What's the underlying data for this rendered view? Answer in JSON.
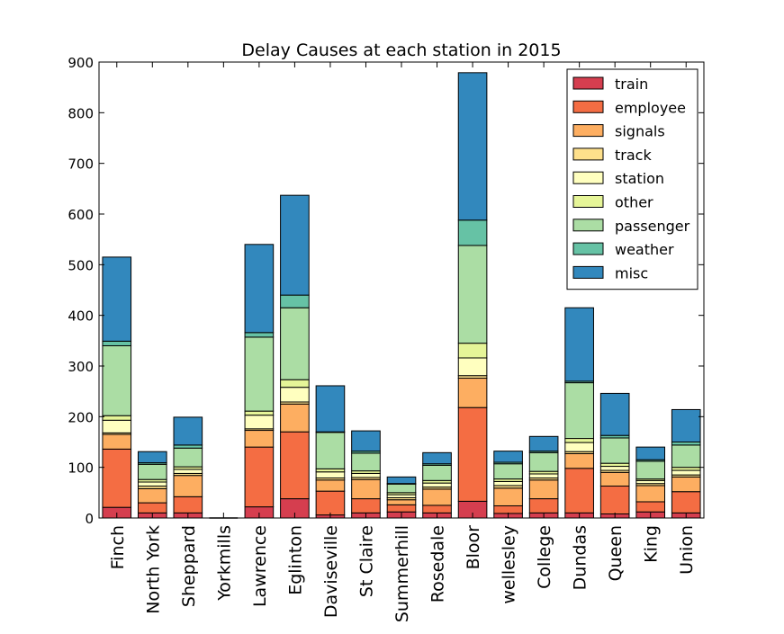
{
  "chart_data": {
    "type": "bar",
    "stacked": true,
    "title": "Delay Causes at each station in 2015",
    "xlabel": "",
    "ylabel": "",
    "ylim": [
      0,
      900
    ],
    "yticks": [
      0,
      100,
      200,
      300,
      400,
      500,
      600,
      700,
      800,
      900
    ],
    "grid": false,
    "legend_position": "top-right",
    "categories": [
      "Finch",
      "North York",
      "Sheppard",
      "Yorkmills",
      "Lawrence",
      "Eglinton",
      "Daviseville",
      "St Claire",
      "Summerhill",
      "Rosedale",
      "Bloor",
      "wellesley",
      "College",
      "Dundas",
      "Queen",
      "King",
      "Union"
    ],
    "series": [
      {
        "name": "train",
        "color": "#d53e4f",
        "values": [
          21,
          10,
          10,
          0,
          22,
          38,
          6,
          10,
          12,
          10,
          33,
          9,
          10,
          10,
          8,
          12,
          10
        ]
      },
      {
        "name": "employee",
        "color": "#f46d43",
        "values": [
          115,
          20,
          32,
          0,
          118,
          132,
          47,
          28,
          14,
          15,
          185,
          15,
          28,
          88,
          55,
          20,
          42
        ]
      },
      {
        "name": "signals",
        "color": "#fdae61",
        "values": [
          29,
          28,
          42,
          0,
          33,
          55,
          22,
          38,
          10,
          32,
          58,
          35,
          37,
          29,
          27,
          32,
          29
        ]
      },
      {
        "name": "track",
        "color": "#fee08b",
        "values": [
          3,
          5,
          4,
          0,
          3,
          4,
          4,
          4,
          4,
          4,
          5,
          5,
          4,
          4,
          4,
          4,
          4
        ]
      },
      {
        "name": "station",
        "color": "#ffffbf",
        "values": [
          25,
          8,
          8,
          0,
          27,
          29,
          12,
          8,
          6,
          8,
          35,
          8,
          8,
          18,
          8,
          6,
          9
        ]
      },
      {
        "name": "other",
        "color": "#e6f598",
        "values": [
          9,
          5,
          5,
          0,
          8,
          15,
          6,
          5,
          4,
          5,
          29,
          5,
          5,
          8,
          6,
          3,
          6
        ]
      },
      {
        "name": "passenger",
        "color": "#abdda4",
        "values": [
          138,
          30,
          37,
          0,
          146,
          142,
          72,
          35,
          17,
          30,
          193,
          30,
          37,
          110,
          50,
          35,
          44
        ]
      },
      {
        "name": "weather",
        "color": "#66c2a5",
        "values": [
          9,
          3,
          6,
          0,
          9,
          25,
          1,
          4,
          1,
          3,
          50,
          3,
          3,
          3,
          5,
          3,
          6
        ]
      },
      {
        "name": "misc",
        "color": "#3288bd",
        "values": [
          166,
          22,
          55,
          0,
          174,
          197,
          91,
          40,
          13,
          22,
          291,
          22,
          29,
          145,
          83,
          25,
          64
        ]
      }
    ]
  }
}
